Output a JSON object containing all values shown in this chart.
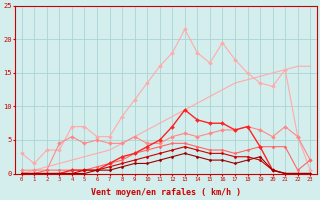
{
  "x": [
    0,
    1,
    2,
    3,
    4,
    5,
    6,
    7,
    8,
    9,
    10,
    11,
    12,
    13,
    14,
    15,
    16,
    17,
    18,
    19,
    20,
    21,
    22,
    23
  ],
  "series": [
    {
      "name": "line1_light_pink_jagged",
      "color": "#ffaaaa",
      "linewidth": 0.8,
      "markersize": 2.0,
      "marker": "D",
      "y": [
        3.0,
        1.5,
        3.5,
        3.5,
        7.0,
        7.0,
        5.5,
        5.5,
        8.5,
        11.0,
        13.5,
        16.0,
        18.0,
        21.5,
        18.0,
        16.5,
        19.5,
        17.0,
        15.0,
        13.5,
        13.0,
        15.5,
        5.5,
        0.5
      ]
    },
    {
      "name": "line2_diagonal_no_marker",
      "color": "#ffaaaa",
      "linewidth": 0.8,
      "markersize": 0,
      "marker": "",
      "y": [
        0.0,
        0.5,
        1.0,
        1.5,
        2.0,
        2.5,
        3.0,
        3.5,
        4.5,
        5.5,
        6.5,
        7.5,
        8.5,
        9.5,
        10.5,
        11.5,
        12.5,
        13.5,
        14.0,
        14.5,
        15.0,
        15.5,
        16.0,
        16.0
      ]
    },
    {
      "name": "line3_mid_pink",
      "color": "#ff8888",
      "linewidth": 0.8,
      "markersize": 2.0,
      "marker": "D",
      "y": [
        0.5,
        0.5,
        0.5,
        4.5,
        5.5,
        4.5,
        5.0,
        4.5,
        4.5,
        5.5,
        4.5,
        4.5,
        5.5,
        6.0,
        5.5,
        6.0,
        6.5,
        6.5,
        7.0,
        6.5,
        5.5,
        7.0,
        5.5,
        2.0
      ]
    },
    {
      "name": "line4_salmon",
      "color": "#ff6666",
      "linewidth": 0.8,
      "markersize": 1.5,
      "marker": "D",
      "y": [
        0.0,
        0.0,
        0.5,
        0.5,
        0.5,
        0.5,
        1.0,
        1.5,
        2.0,
        3.0,
        3.5,
        4.0,
        4.5,
        4.5,
        4.0,
        3.5,
        3.5,
        3.0,
        3.5,
        4.0,
        4.0,
        4.0,
        0.5,
        2.0
      ]
    },
    {
      "name": "line5_bright_red",
      "color": "#ff2222",
      "linewidth": 1.0,
      "markersize": 2.0,
      "marker": "D",
      "y": [
        0.0,
        0.0,
        0.0,
        0.0,
        0.5,
        0.5,
        0.5,
        1.5,
        2.5,
        3.0,
        4.0,
        5.0,
        7.0,
        9.5,
        8.0,
        7.5,
        7.5,
        6.5,
        7.0,
        4.0,
        0.5,
        0.0,
        0.0,
        0.0
      ]
    },
    {
      "name": "line6_dark_red",
      "color": "#cc0000",
      "linewidth": 0.8,
      "markersize": 1.5,
      "marker": "D",
      "y": [
        0.0,
        0.0,
        0.0,
        0.0,
        0.0,
        0.5,
        0.5,
        1.0,
        1.5,
        2.0,
        2.5,
        3.0,
        3.5,
        4.0,
        3.5,
        3.0,
        3.0,
        2.5,
        2.5,
        2.0,
        0.5,
        0.0,
        0.0,
        0.0
      ]
    },
    {
      "name": "line7_darkest_red",
      "color": "#990000",
      "linewidth": 0.8,
      "markersize": 1.5,
      "marker": "D",
      "y": [
        0.0,
        0.0,
        0.0,
        0.0,
        0.0,
        0.0,
        0.5,
        0.5,
        1.0,
        1.5,
        1.5,
        2.0,
        2.5,
        3.0,
        2.5,
        2.0,
        2.0,
        1.5,
        2.0,
        2.5,
        0.5,
        0.0,
        0.0,
        0.0
      ]
    }
  ],
  "xlim": [
    -0.5,
    23.5
  ],
  "ylim": [
    0,
    25
  ],
  "xticks": [
    0,
    1,
    2,
    3,
    4,
    5,
    6,
    7,
    8,
    9,
    10,
    11,
    12,
    13,
    14,
    15,
    16,
    17,
    18,
    19,
    20,
    21,
    22,
    23
  ],
  "yticks": [
    0,
    5,
    10,
    15,
    20,
    25
  ],
  "xlabel": "Vent moyen/en rafales ( km/h )",
  "background_color": "#d4eeee",
  "grid_color": "#aad4d4",
  "tick_color": "#cc0000",
  "label_color": "#cc0000",
  "axis_color": "#cc0000"
}
